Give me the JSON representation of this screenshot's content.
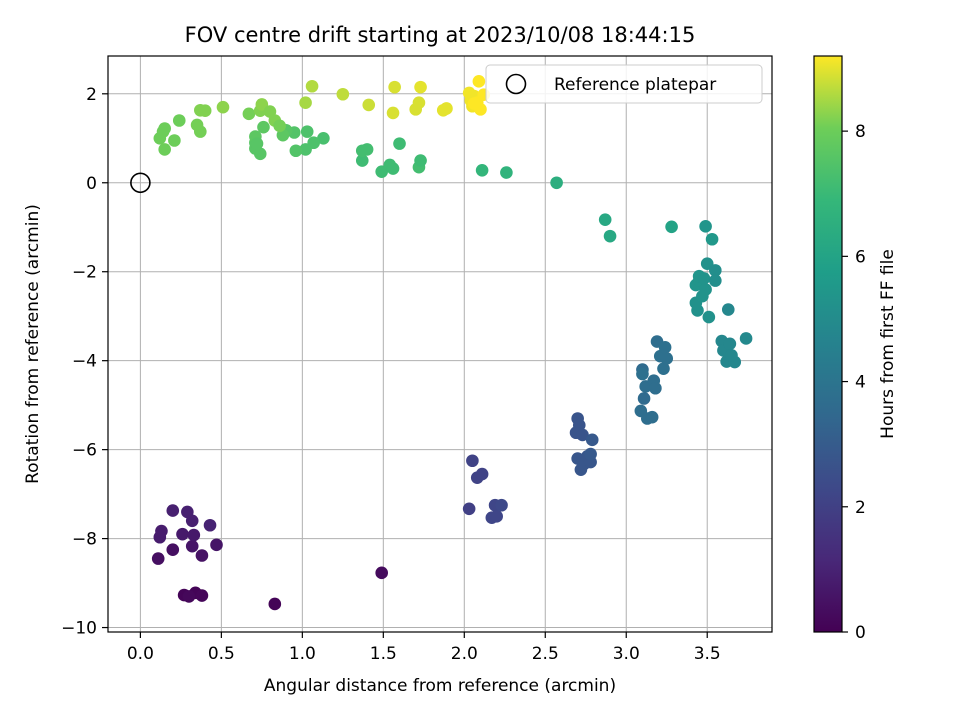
{
  "chart_data": {
    "type": "scatter",
    "title": "FOV centre drift starting at 2023/10/08 18:44:15",
    "xlabel": "Angular distance from reference (arcmin)",
    "ylabel": "Rotation from reference (arcmin)",
    "xlim": [
      -0.2,
      3.9
    ],
    "ylim": [
      -10.1,
      2.85
    ],
    "xticks": [
      0.0,
      0.5,
      1.0,
      1.5,
      2.0,
      2.5,
      3.0,
      3.5
    ],
    "xtick_labels": [
      "0.0",
      "0.5",
      "1.0",
      "1.5",
      "2.0",
      "2.5",
      "3.0",
      "3.5"
    ],
    "yticks": [
      -10,
      -8,
      -6,
      -4,
      -2,
      0,
      2
    ],
    "ytick_labels": [
      "−10",
      "−8",
      "−6",
      "−4",
      "−2",
      "0",
      "2"
    ],
    "grid": true,
    "legend": {
      "position": "top-right",
      "entries": [
        "Reference platepar"
      ]
    },
    "reference_point": {
      "label": "Reference platepar",
      "x": 0.0,
      "y": 0.0
    },
    "colorbar": {
      "label": "Hours from first FF file",
      "colormap": "viridis",
      "range": [
        0,
        9.2
      ],
      "ticks": [
        0,
        2,
        4,
        6,
        8
      ],
      "tick_labels": [
        "0",
        "2",
        "4",
        "6",
        "8"
      ]
    },
    "points": [
      [
        0.27,
        -9.27,
        0.1
      ],
      [
        0.34,
        -9.22,
        0.1
      ],
      [
        0.38,
        -9.28,
        0.15
      ],
      [
        0.3,
        -9.3,
        0.2
      ],
      [
        0.83,
        -9.47,
        0.1
      ],
      [
        1.49,
        -8.77,
        0.3
      ],
      [
        0.11,
        -8.45,
        0.4
      ],
      [
        0.2,
        -8.25,
        0.4
      ],
      [
        0.38,
        -8.38,
        0.5
      ],
      [
        0.47,
        -8.14,
        0.6
      ],
      [
        0.32,
        -8.17,
        0.6
      ],
      [
        0.26,
        -7.9,
        0.7
      ],
      [
        0.33,
        -7.92,
        0.7
      ],
      [
        0.12,
        -7.97,
        0.8
      ],
      [
        0.13,
        -7.83,
        0.8
      ],
      [
        0.2,
        -7.37,
        0.9
      ],
      [
        0.29,
        -7.4,
        0.9
      ],
      [
        0.32,
        -7.6,
        0.9
      ],
      [
        0.43,
        -7.7,
        1.0
      ],
      [
        2.03,
        -7.33,
        2.0
      ],
      [
        2.05,
        -6.25,
        2.1
      ],
      [
        2.08,
        -6.63,
        2.1
      ],
      [
        2.11,
        -6.55,
        2.1
      ],
      [
        2.17,
        -7.53,
        2.2
      ],
      [
        2.19,
        -7.25,
        2.2
      ],
      [
        2.2,
        -7.5,
        2.2
      ],
      [
        2.23,
        -7.25,
        2.3
      ],
      [
        2.7,
        -5.3,
        2.7
      ],
      [
        2.71,
        -5.45,
        2.7
      ],
      [
        2.69,
        -5.62,
        2.7
      ],
      [
        2.73,
        -5.67,
        2.7
      ],
      [
        2.7,
        -6.2,
        2.8
      ],
      [
        2.72,
        -6.45,
        2.8
      ],
      [
        2.74,
        -6.32,
        2.8
      ],
      [
        2.76,
        -6.15,
        2.8
      ],
      [
        2.78,
        -6.28,
        2.8
      ],
      [
        2.79,
        -5.78,
        2.9
      ],
      [
        2.78,
        -6.1,
        2.9
      ],
      [
        3.1,
        -4.2,
        3.6
      ],
      [
        3.11,
        -4.85,
        3.6
      ],
      [
        3.09,
        -5.13,
        3.7
      ],
      [
        3.13,
        -5.3,
        3.7
      ],
      [
        3.16,
        -5.27,
        3.7
      ],
      [
        3.12,
        -4.58,
        3.7
      ],
      [
        3.17,
        -4.45,
        3.7
      ],
      [
        3.18,
        -4.62,
        3.7
      ],
      [
        3.19,
        -3.57,
        3.7
      ],
      [
        3.21,
        -3.9,
        3.8
      ],
      [
        3.23,
        -4.18,
        3.8
      ],
      [
        3.24,
        -3.7,
        3.8
      ],
      [
        3.25,
        -3.95,
        3.8
      ],
      [
        3.1,
        -4.3,
        3.8
      ],
      [
        3.43,
        -2.7,
        5.2
      ],
      [
        3.44,
        -2.87,
        5.2
      ],
      [
        3.43,
        -2.3,
        5.4
      ],
      [
        3.45,
        -2.2,
        5.4
      ],
      [
        3.45,
        -2.1,
        5.4
      ],
      [
        3.48,
        -2.15,
        5.3
      ],
      [
        3.49,
        -2.4,
        5.3
      ],
      [
        3.47,
        -2.55,
        5.3
      ],
      [
        3.5,
        -1.82,
        5.2
      ],
      [
        3.51,
        -3.02,
        5.2
      ],
      [
        3.53,
        -1.27,
        5.5
      ],
      [
        3.55,
        -1.97,
        5.1
      ],
      [
        3.55,
        -2.2,
        5.1
      ],
      [
        3.49,
        -0.98,
        5.4
      ],
      [
        3.59,
        -3.56,
        4.8
      ],
      [
        3.6,
        -3.77,
        4.8
      ],
      [
        3.62,
        -4.02,
        4.8
      ],
      [
        3.63,
        -2.85,
        4.8
      ],
      [
        3.64,
        -3.62,
        4.8
      ],
      [
        3.67,
        -4.03,
        4.8
      ],
      [
        3.65,
        -3.88,
        4.8
      ],
      [
        3.74,
        -3.5,
        4.9
      ],
      [
        2.87,
        -0.83,
        6.2
      ],
      [
        2.9,
        -1.2,
        6.2
      ],
      [
        3.28,
        -0.99,
        6.0
      ],
      [
        2.57,
        0.0,
        6.5
      ],
      [
        2.26,
        0.23,
        6.7
      ],
      [
        2.11,
        0.28,
        6.8
      ],
      [
        1.49,
        0.25,
        7.1
      ],
      [
        1.54,
        0.4,
        7.1
      ],
      [
        1.56,
        0.32,
        7.1
      ],
      [
        1.72,
        0.35,
        7.2
      ],
      [
        1.73,
        0.5,
        7.1
      ],
      [
        1.6,
        0.88,
        7.1
      ],
      [
        1.37,
        0.5,
        7.1
      ],
      [
        1.37,
        0.72,
        7.2
      ],
      [
        1.4,
        0.75,
        7.2
      ],
      [
        1.13,
        1.0,
        7.3
      ],
      [
        1.07,
        0.9,
        7.4
      ],
      [
        1.03,
        1.15,
        7.4
      ],
      [
        1.02,
        0.75,
        7.4
      ],
      [
        0.96,
        0.72,
        7.5
      ],
      [
        0.95,
        1.13,
        7.5
      ],
      [
        0.9,
        1.18,
        7.6
      ],
      [
        0.88,
        1.07,
        7.7
      ],
      [
        0.76,
        1.25,
        7.7
      ],
      [
        0.74,
        0.65,
        7.6
      ],
      [
        0.71,
        0.77,
        7.6
      ],
      [
        0.71,
        0.9,
        7.6
      ],
      [
        0.71,
        1.04,
        7.7
      ],
      [
        0.72,
        0.88,
        7.6
      ],
      [
        0.67,
        1.55,
        8.1
      ],
      [
        0.74,
        1.62,
        8.2
      ],
      [
        0.75,
        1.76,
        8.3
      ],
      [
        0.8,
        1.6,
        8.2
      ],
      [
        0.83,
        1.4,
        8.2
      ],
      [
        0.86,
        1.28,
        8.1
      ],
      [
        1.02,
        1.8,
        8.5
      ],
      [
        1.06,
        2.17,
        8.6
      ],
      [
        1.25,
        1.99,
        8.7
      ],
      [
        1.41,
        1.75,
        8.8
      ],
      [
        1.56,
        1.57,
        8.9
      ],
      [
        1.57,
        2.15,
        8.9
      ],
      [
        1.7,
        1.65,
        8.9
      ],
      [
        1.72,
        1.8,
        8.9
      ],
      [
        1.73,
        2.15,
        9.0
      ],
      [
        1.87,
        1.63,
        9.0
      ],
      [
        1.89,
        1.67,
        9.0
      ],
      [
        0.51,
        1.7,
        8.3
      ],
      [
        0.37,
        1.63,
        8.2
      ],
      [
        0.4,
        1.62,
        8.2
      ],
      [
        0.35,
        1.3,
        8.1
      ],
      [
        0.37,
        1.15,
        8.1
      ],
      [
        0.24,
        1.4,
        8.0
      ],
      [
        0.21,
        0.95,
        8.0
      ],
      [
        0.12,
        1.0,
        8.0
      ],
      [
        0.14,
        1.15,
        8.0
      ],
      [
        0.15,
        1.22,
        8.0
      ],
      [
        0.15,
        0.75,
        8.0
      ],
      [
        2.03,
        2.02,
        9.1
      ],
      [
        2.04,
        1.85,
        9.1
      ],
      [
        2.05,
        1.72,
        9.1
      ],
      [
        2.06,
        1.95,
        9.1
      ],
      [
        2.08,
        1.8,
        9.2
      ],
      [
        2.1,
        1.65,
        9.2
      ],
      [
        2.09,
        2.28,
        9.2
      ],
      [
        2.12,
        1.98,
        9.2
      ],
      [
        2.06,
        1.78,
        9.2
      ]
    ]
  }
}
